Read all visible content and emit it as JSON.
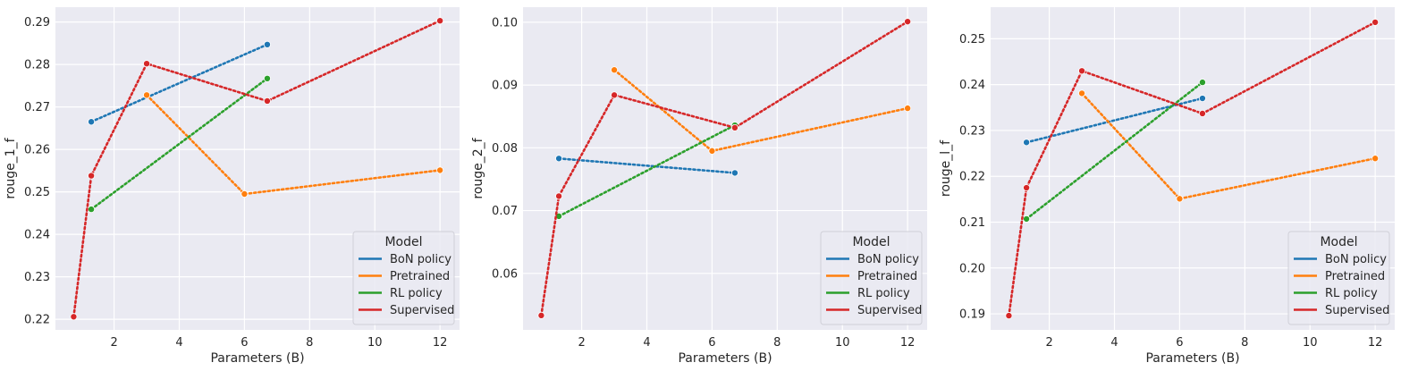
{
  "legend": {
    "title": "Model",
    "placement": "lower-right"
  },
  "chart_data": [
    {
      "type": "line",
      "xlabel": "Parameters (B)",
      "ylabel": "rouge_1_f",
      "xlim": [
        0.2,
        12.6
      ],
      "ylim": [
        0.2175,
        0.2935
      ],
      "xticks": [
        2,
        4,
        6,
        8,
        10,
        12
      ],
      "yticks": [
        0.22,
        0.23,
        0.24,
        0.25,
        0.26,
        0.27,
        0.28,
        0.29
      ],
      "grid": true,
      "series": [
        {
          "name": "BoN policy",
          "color": "#1f77b4",
          "x": [
            1.3,
            6.7
          ],
          "y": [
            0.2665,
            0.2847
          ]
        },
        {
          "name": "Pretrained",
          "color": "#ff7f0e",
          "x": [
            3.0,
            6.0,
            12.0
          ],
          "y": [
            0.2728,
            0.2495,
            0.2551
          ]
        },
        {
          "name": "RL policy",
          "color": "#2ca02c",
          "x": [
            1.3,
            6.7
          ],
          "y": [
            0.2459,
            0.2767
          ]
        },
        {
          "name": "Supervised",
          "color": "#d62728",
          "x": [
            0.76,
            1.3,
            3.0,
            6.7,
            12.0
          ],
          "y": [
            0.2206,
            0.2538,
            0.2802,
            0.2714,
            0.2903
          ]
        }
      ]
    },
    {
      "type": "line",
      "xlabel": "Parameters (B)",
      "ylabel": "rouge_2_f",
      "xlim": [
        0.2,
        12.6
      ],
      "ylim": [
        0.051,
        0.1024
      ],
      "xticks": [
        2,
        4,
        6,
        8,
        10,
        12
      ],
      "yticks": [
        0.06,
        0.07,
        0.08,
        0.09,
        0.1
      ],
      "ytick_labels": [
        "0.06",
        "0.07",
        "0.08",
        "0.09",
        "0.10"
      ],
      "grid": true,
      "series": [
        {
          "name": "BoN policy",
          "color": "#1f77b4",
          "x": [
            1.3,
            6.7
          ],
          "y": [
            0.0783,
            0.076
          ]
        },
        {
          "name": "Pretrained",
          "color": "#ff7f0e",
          "x": [
            3.0,
            6.0,
            12.0
          ],
          "y": [
            0.0924,
            0.0795,
            0.0863
          ]
        },
        {
          "name": "RL policy",
          "color": "#2ca02c",
          "x": [
            1.3,
            6.7
          ],
          "y": [
            0.0691,
            0.0836
          ]
        },
        {
          "name": "Supervised",
          "color": "#d62728",
          "x": [
            0.76,
            1.3,
            3.0,
            6.7,
            12.0
          ],
          "y": [
            0.0533,
            0.0723,
            0.0884,
            0.0832,
            0.1001
          ]
        }
      ]
    },
    {
      "type": "line",
      "xlabel": "Parameters (B)",
      "ylabel": "rouge_l_f",
      "xlim": [
        0.2,
        12.6
      ],
      "ylim": [
        0.1865,
        0.2569
      ],
      "xticks": [
        2,
        4,
        6,
        8,
        10,
        12
      ],
      "yticks": [
        0.19,
        0.2,
        0.21,
        0.22,
        0.23,
        0.24,
        0.25
      ],
      "ytick_labels": [
        "0.19",
        "0.20",
        "0.21",
        "0.22",
        "0.23",
        "0.24",
        "0.25"
      ],
      "grid": true,
      "series": [
        {
          "name": "BoN policy",
          "color": "#1f77b4",
          "x": [
            1.3,
            6.7
          ],
          "y": [
            0.2274,
            0.237
          ]
        },
        {
          "name": "Pretrained",
          "color": "#ff7f0e",
          "x": [
            3.0,
            6.0,
            12.0
          ],
          "y": [
            0.2381,
            0.2151,
            0.2239
          ]
        },
        {
          "name": "RL policy",
          "color": "#2ca02c",
          "x": [
            1.3,
            6.7
          ],
          "y": [
            0.2107,
            0.2405
          ]
        },
        {
          "name": "Supervised",
          "color": "#d62728",
          "x": [
            0.76,
            1.3,
            3.0,
            6.7,
            12.0
          ],
          "y": [
            0.1896,
            0.2175,
            0.243,
            0.2337,
            0.2536
          ]
        }
      ]
    }
  ]
}
